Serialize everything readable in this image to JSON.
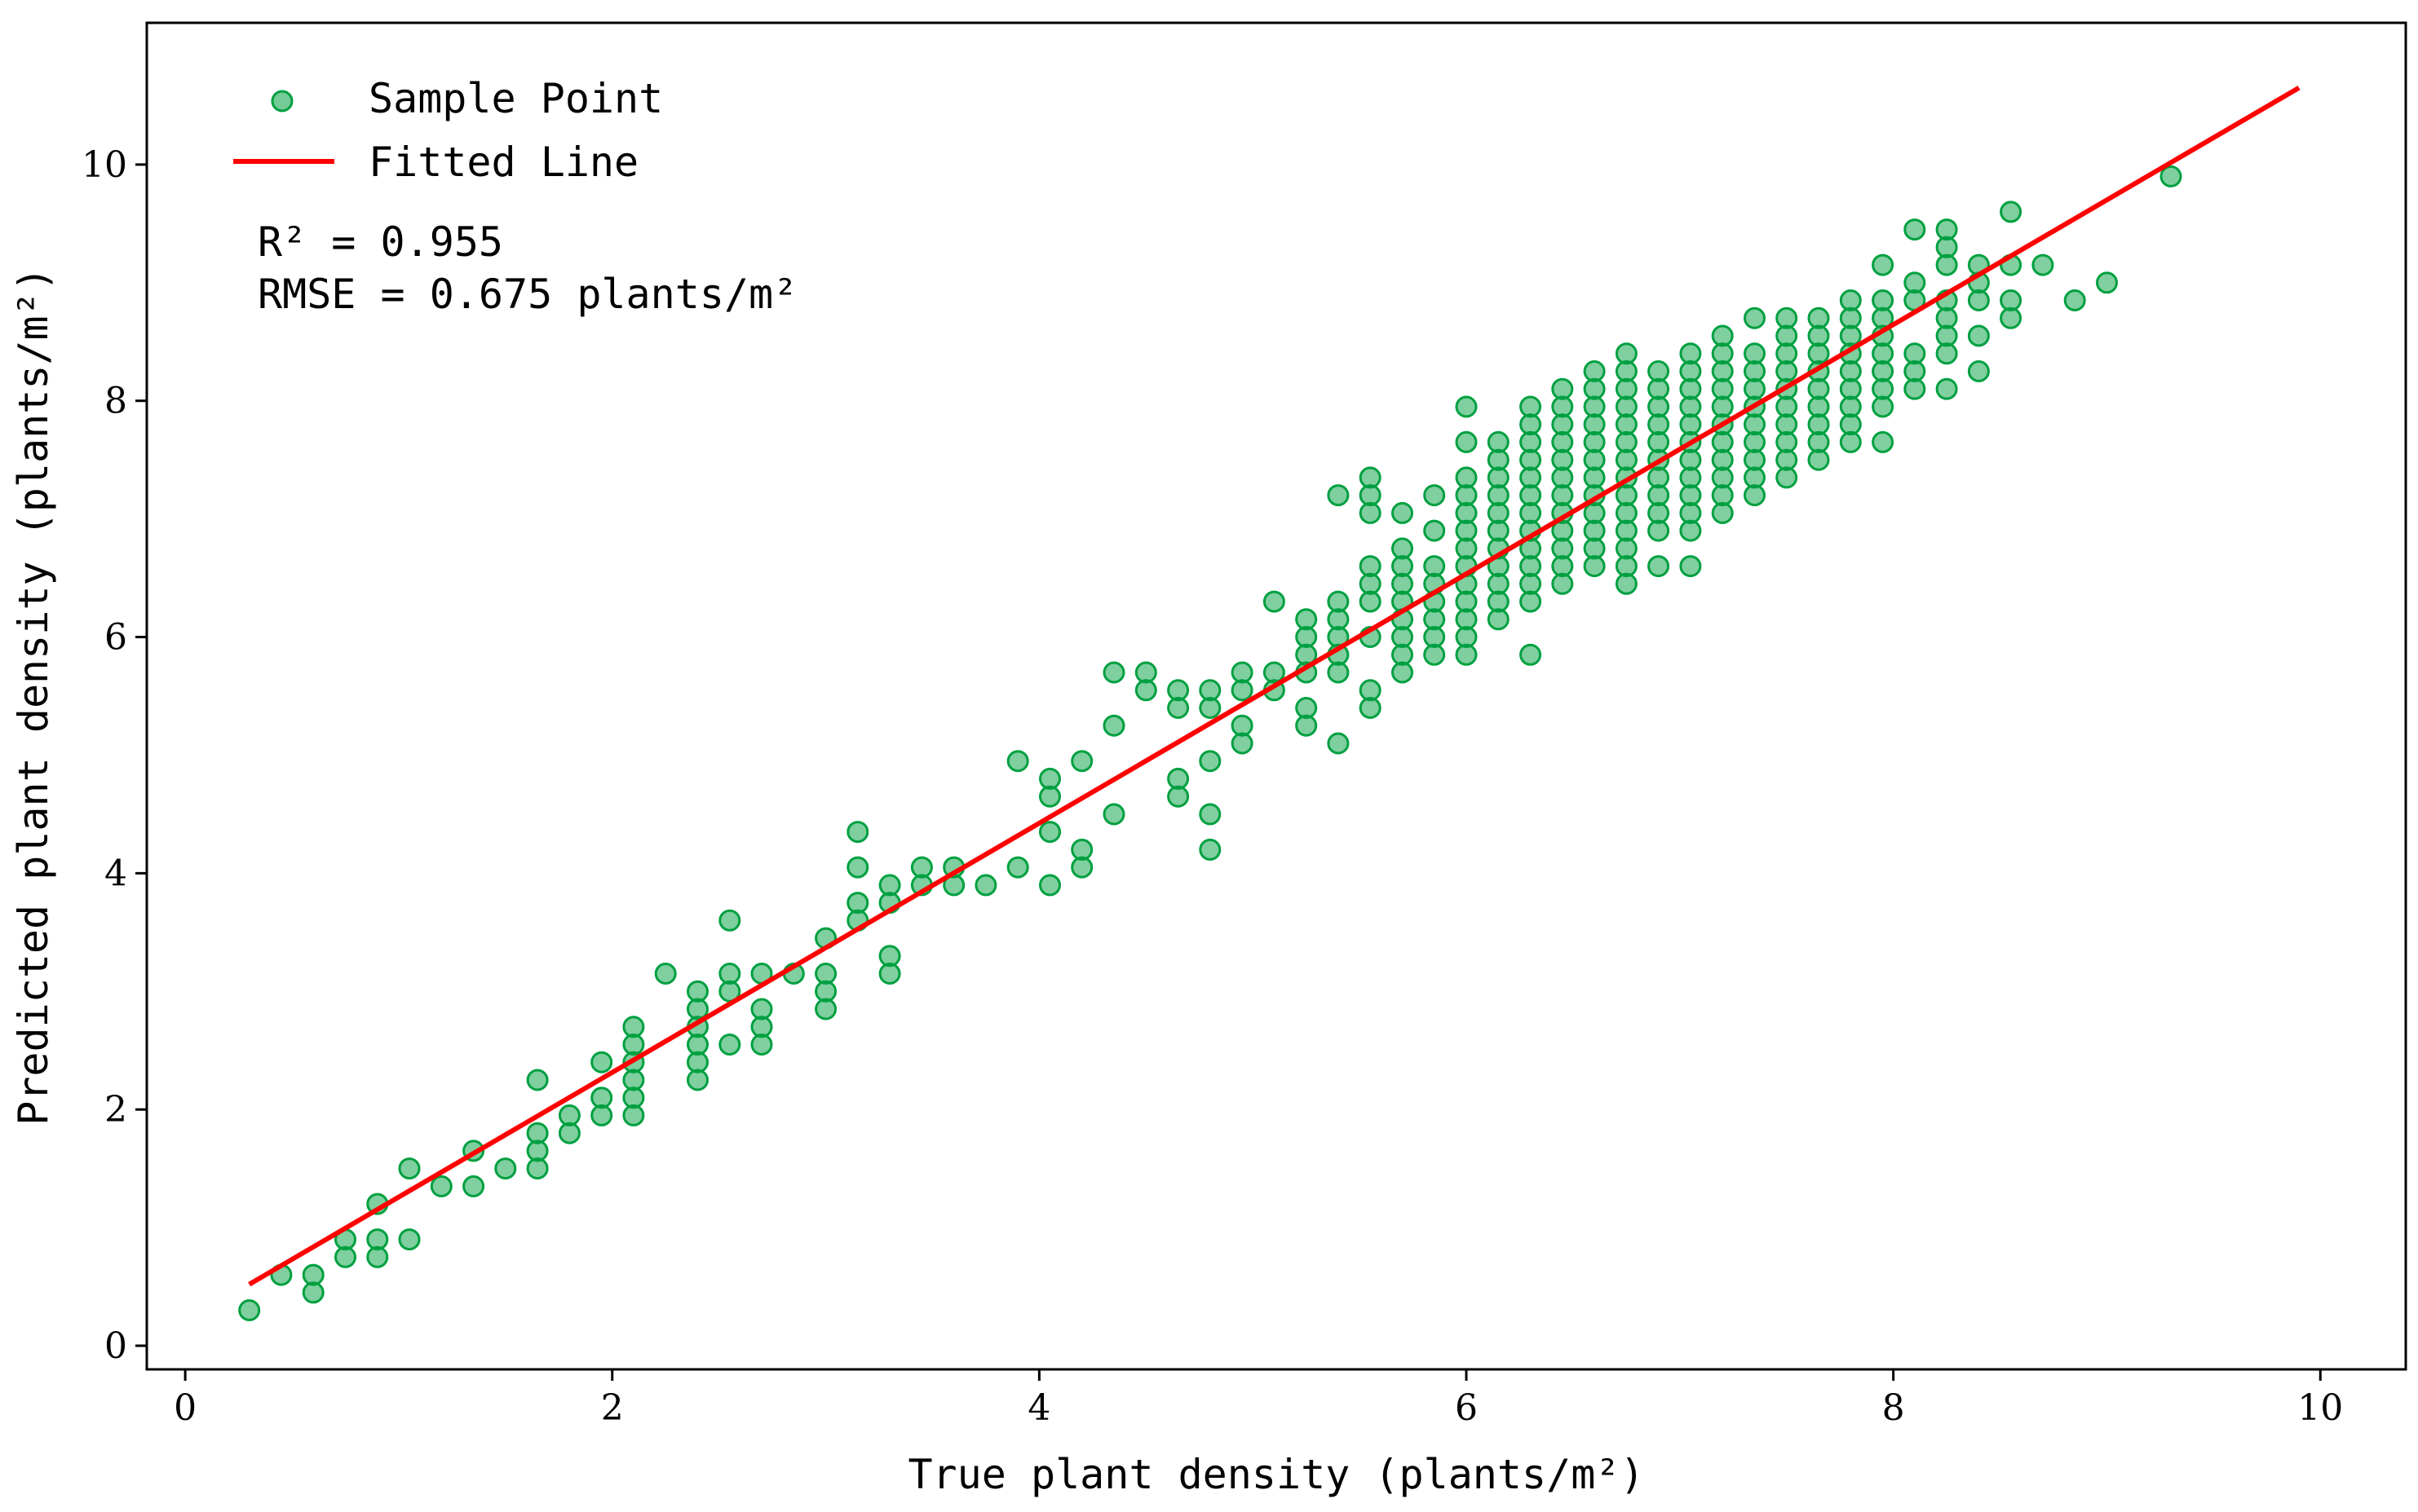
{
  "chart_data": {
    "type": "scatter",
    "xlabel": "True plant density (plants/m²)",
    "ylabel": "Predicted plant density (plants/m²)",
    "xlim": [
      -0.18,
      10.4
    ],
    "ylim": [
      -0.2,
      11.2
    ],
    "xticks": [
      0,
      2,
      4,
      6,
      8,
      10
    ],
    "yticks": [
      0,
      2,
      4,
      6,
      8,
      10
    ],
    "grid": false,
    "legend_position": "top-left",
    "legend": [
      {
        "label": "Sample Point",
        "kind": "marker",
        "color": "#00a040"
      },
      {
        "label": "Fitted Line",
        "kind": "line",
        "color": "#ff0000"
      }
    ],
    "annotations": [
      "R² = 0.955",
      "RMSE = 0.675 plants/m²"
    ],
    "series": [
      {
        "name": "Sample Point",
        "kind": "scatter",
        "color": "#00a040",
        "points": [
          [
            0.3,
            0.3
          ],
          [
            0.45,
            0.6
          ],
          [
            0.6,
            0.45
          ],
          [
            0.6,
            0.6
          ],
          [
            0.75,
            0.75
          ],
          [
            0.75,
            0.9
          ],
          [
            0.9,
            0.75
          ],
          [
            0.9,
            0.9
          ],
          [
            0.9,
            1.2
          ],
          [
            1.05,
            0.9
          ],
          [
            1.05,
            1.5
          ],
          [
            1.2,
            1.35
          ],
          [
            1.35,
            1.35
          ],
          [
            1.35,
            1.65
          ],
          [
            1.5,
            1.5
          ],
          [
            1.65,
            1.5
          ],
          [
            1.65,
            1.65
          ],
          [
            1.65,
            1.8
          ],
          [
            1.65,
            2.25
          ],
          [
            1.8,
            1.8
          ],
          [
            1.8,
            1.95
          ],
          [
            1.95,
            1.95
          ],
          [
            1.95,
            2.1
          ],
          [
            1.95,
            2.4
          ],
          [
            2.1,
            1.95
          ],
          [
            2.1,
            2.1
          ],
          [
            2.1,
            2.25
          ],
          [
            2.1,
            2.4
          ],
          [
            2.1,
            2.55
          ],
          [
            2.1,
            2.7
          ],
          [
            2.25,
            3.15
          ],
          [
            2.4,
            2.25
          ],
          [
            2.4,
            2.4
          ],
          [
            2.4,
            2.55
          ],
          [
            2.4,
            2.7
          ],
          [
            2.4,
            2.85
          ],
          [
            2.4,
            3.0
          ],
          [
            2.55,
            2.55
          ],
          [
            2.55,
            3.0
          ],
          [
            2.55,
            3.15
          ],
          [
            2.55,
            3.6
          ],
          [
            2.7,
            2.55
          ],
          [
            2.7,
            2.7
          ],
          [
            2.7,
            2.85
          ],
          [
            2.7,
            3.15
          ],
          [
            2.85,
            3.15
          ],
          [
            3.0,
            2.85
          ],
          [
            3.0,
            3.0
          ],
          [
            3.0,
            3.15
          ],
          [
            3.0,
            3.45
          ],
          [
            3.15,
            3.6
          ],
          [
            3.15,
            3.75
          ],
          [
            3.15,
            4.05
          ],
          [
            3.15,
            4.35
          ],
          [
            3.3,
            3.15
          ],
          [
            3.3,
            3.3
          ],
          [
            3.3,
            3.75
          ],
          [
            3.3,
            3.9
          ],
          [
            3.45,
            3.9
          ],
          [
            3.45,
            4.05
          ],
          [
            3.6,
            3.9
          ],
          [
            3.6,
            4.05
          ],
          [
            3.75,
            3.9
          ],
          [
            3.9,
            4.05
          ],
          [
            3.9,
            4.95
          ],
          [
            4.05,
            3.9
          ],
          [
            4.05,
            4.35
          ],
          [
            4.05,
            4.65
          ],
          [
            4.05,
            4.8
          ],
          [
            4.2,
            4.05
          ],
          [
            4.2,
            4.2
          ],
          [
            4.2,
            4.95
          ],
          [
            4.35,
            4.5
          ],
          [
            4.35,
            5.25
          ],
          [
            4.35,
            5.7
          ],
          [
            4.5,
            5.55
          ],
          [
            4.5,
            5.7
          ],
          [
            4.65,
            4.65
          ],
          [
            4.65,
            4.8
          ],
          [
            4.65,
            5.4
          ],
          [
            4.65,
            5.55
          ],
          [
            4.8,
            4.2
          ],
          [
            4.8,
            4.5
          ],
          [
            4.8,
            4.95
          ],
          [
            4.8,
            5.4
          ],
          [
            4.8,
            5.55
          ],
          [
            4.95,
            5.1
          ],
          [
            4.95,
            5.25
          ],
          [
            4.95,
            5.55
          ],
          [
            4.95,
            5.7
          ],
          [
            5.1,
            5.55
          ],
          [
            5.1,
            5.7
          ],
          [
            5.1,
            6.3
          ],
          [
            5.25,
            5.25
          ],
          [
            5.25,
            5.4
          ],
          [
            5.25,
            5.7
          ],
          [
            5.25,
            5.85
          ],
          [
            5.25,
            6.0
          ],
          [
            5.25,
            6.15
          ],
          [
            5.4,
            5.1
          ],
          [
            5.4,
            5.7
          ],
          [
            5.4,
            5.85
          ],
          [
            5.4,
            6.0
          ],
          [
            5.4,
            6.15
          ],
          [
            5.4,
            6.3
          ],
          [
            5.4,
            7.2
          ],
          [
            5.55,
            5.4
          ],
          [
            5.55,
            5.55
          ],
          [
            5.55,
            6.0
          ],
          [
            5.55,
            6.3
          ],
          [
            5.55,
            6.45
          ],
          [
            5.55,
            6.6
          ],
          [
            5.55,
            7.05
          ],
          [
            5.55,
            7.2
          ],
          [
            5.55,
            7.35
          ],
          [
            5.7,
            5.7
          ],
          [
            5.7,
            5.85
          ],
          [
            5.7,
            6.0
          ],
          [
            5.7,
            6.15
          ],
          [
            5.7,
            6.3
          ],
          [
            5.7,
            6.45
          ],
          [
            5.7,
            6.6
          ],
          [
            5.7,
            6.75
          ],
          [
            5.7,
            7.05
          ],
          [
            5.85,
            5.85
          ],
          [
            5.85,
            6.0
          ],
          [
            5.85,
            6.15
          ],
          [
            5.85,
            6.3
          ],
          [
            5.85,
            6.45
          ],
          [
            5.85,
            6.6
          ],
          [
            5.85,
            6.9
          ],
          [
            5.85,
            7.2
          ],
          [
            6.0,
            5.85
          ],
          [
            6.0,
            6.0
          ],
          [
            6.0,
            6.15
          ],
          [
            6.0,
            6.3
          ],
          [
            6.0,
            6.45
          ],
          [
            6.0,
            6.6
          ],
          [
            6.0,
            6.75
          ],
          [
            6.0,
            6.9
          ],
          [
            6.0,
            7.05
          ],
          [
            6.0,
            7.2
          ],
          [
            6.0,
            7.35
          ],
          [
            6.0,
            7.65
          ],
          [
            6.0,
            7.95
          ],
          [
            6.15,
            6.15
          ],
          [
            6.15,
            6.3
          ],
          [
            6.15,
            6.45
          ],
          [
            6.15,
            6.6
          ],
          [
            6.15,
            6.75
          ],
          [
            6.15,
            6.9
          ],
          [
            6.15,
            7.05
          ],
          [
            6.15,
            7.2
          ],
          [
            6.15,
            7.35
          ],
          [
            6.15,
            7.5
          ],
          [
            6.15,
            7.65
          ],
          [
            6.3,
            5.85
          ],
          [
            6.3,
            6.3
          ],
          [
            6.3,
            6.45
          ],
          [
            6.3,
            6.6
          ],
          [
            6.3,
            6.75
          ],
          [
            6.3,
            6.9
          ],
          [
            6.3,
            7.05
          ],
          [
            6.3,
            7.2
          ],
          [
            6.3,
            7.35
          ],
          [
            6.3,
            7.5
          ],
          [
            6.3,
            7.65
          ],
          [
            6.3,
            7.8
          ],
          [
            6.3,
            7.95
          ],
          [
            6.45,
            6.45
          ],
          [
            6.45,
            6.6
          ],
          [
            6.45,
            6.75
          ],
          [
            6.45,
            6.9
          ],
          [
            6.45,
            7.05
          ],
          [
            6.45,
            7.2
          ],
          [
            6.45,
            7.35
          ],
          [
            6.45,
            7.5
          ],
          [
            6.45,
            7.65
          ],
          [
            6.45,
            7.8
          ],
          [
            6.45,
            7.95
          ],
          [
            6.45,
            8.1
          ],
          [
            6.6,
            6.6
          ],
          [
            6.6,
            6.75
          ],
          [
            6.6,
            6.9
          ],
          [
            6.6,
            7.05
          ],
          [
            6.6,
            7.2
          ],
          [
            6.6,
            7.35
          ],
          [
            6.6,
            7.5
          ],
          [
            6.6,
            7.65
          ],
          [
            6.6,
            7.8
          ],
          [
            6.6,
            7.95
          ],
          [
            6.6,
            8.1
          ],
          [
            6.6,
            8.25
          ],
          [
            6.75,
            6.45
          ],
          [
            6.75,
            6.6
          ],
          [
            6.75,
            6.75
          ],
          [
            6.75,
            6.9
          ],
          [
            6.75,
            7.05
          ],
          [
            6.75,
            7.2
          ],
          [
            6.75,
            7.35
          ],
          [
            6.75,
            7.5
          ],
          [
            6.75,
            7.65
          ],
          [
            6.75,
            7.8
          ],
          [
            6.75,
            7.95
          ],
          [
            6.75,
            8.1
          ],
          [
            6.75,
            8.25
          ],
          [
            6.75,
            8.4
          ],
          [
            6.9,
            6.6
          ],
          [
            6.9,
            6.9
          ],
          [
            6.9,
            7.05
          ],
          [
            6.9,
            7.2
          ],
          [
            6.9,
            7.35
          ],
          [
            6.9,
            7.5
          ],
          [
            6.9,
            7.65
          ],
          [
            6.9,
            7.8
          ],
          [
            6.9,
            7.95
          ],
          [
            6.9,
            8.1
          ],
          [
            6.9,
            8.25
          ],
          [
            7.05,
            6.6
          ],
          [
            7.05,
            6.9
          ],
          [
            7.05,
            7.05
          ],
          [
            7.05,
            7.2
          ],
          [
            7.05,
            7.35
          ],
          [
            7.05,
            7.5
          ],
          [
            7.05,
            7.65
          ],
          [
            7.05,
            7.8
          ],
          [
            7.05,
            7.95
          ],
          [
            7.05,
            8.1
          ],
          [
            7.05,
            8.25
          ],
          [
            7.05,
            8.4
          ],
          [
            7.2,
            7.05
          ],
          [
            7.2,
            7.2
          ],
          [
            7.2,
            7.35
          ],
          [
            7.2,
            7.5
          ],
          [
            7.2,
            7.65
          ],
          [
            7.2,
            7.8
          ],
          [
            7.2,
            7.95
          ],
          [
            7.2,
            8.1
          ],
          [
            7.2,
            8.25
          ],
          [
            7.2,
            8.4
          ],
          [
            7.2,
            8.55
          ],
          [
            7.35,
            7.2
          ],
          [
            7.35,
            7.35
          ],
          [
            7.35,
            7.5
          ],
          [
            7.35,
            7.65
          ],
          [
            7.35,
            7.8
          ],
          [
            7.35,
            7.95
          ],
          [
            7.35,
            8.1
          ],
          [
            7.35,
            8.25
          ],
          [
            7.35,
            8.4
          ],
          [
            7.35,
            8.7
          ],
          [
            7.5,
            7.35
          ],
          [
            7.5,
            7.5
          ],
          [
            7.5,
            7.65
          ],
          [
            7.5,
            7.8
          ],
          [
            7.5,
            7.95
          ],
          [
            7.5,
            8.1
          ],
          [
            7.5,
            8.25
          ],
          [
            7.5,
            8.4
          ],
          [
            7.5,
            8.55
          ],
          [
            7.5,
            8.7
          ],
          [
            7.65,
            7.5
          ],
          [
            7.65,
            7.65
          ],
          [
            7.65,
            7.8
          ],
          [
            7.65,
            7.95
          ],
          [
            7.65,
            8.1
          ],
          [
            7.65,
            8.25
          ],
          [
            7.65,
            8.4
          ],
          [
            7.65,
            8.55
          ],
          [
            7.65,
            8.7
          ],
          [
            7.8,
            7.65
          ],
          [
            7.8,
            7.8
          ],
          [
            7.8,
            7.95
          ],
          [
            7.8,
            8.1
          ],
          [
            7.8,
            8.25
          ],
          [
            7.8,
            8.4
          ],
          [
            7.8,
            8.55
          ],
          [
            7.8,
            8.7
          ],
          [
            7.8,
            8.85
          ],
          [
            7.95,
            7.65
          ],
          [
            7.95,
            7.95
          ],
          [
            7.95,
            8.1
          ],
          [
            7.95,
            8.25
          ],
          [
            7.95,
            8.4
          ],
          [
            7.95,
            8.55
          ],
          [
            7.95,
            8.7
          ],
          [
            7.95,
            8.85
          ],
          [
            7.95,
            9.15
          ],
          [
            8.1,
            8.1
          ],
          [
            8.1,
            8.25
          ],
          [
            8.1,
            8.4
          ],
          [
            8.1,
            8.85
          ],
          [
            8.1,
            9.0
          ],
          [
            8.1,
            9.45
          ],
          [
            8.25,
            8.1
          ],
          [
            8.25,
            8.4
          ],
          [
            8.25,
            8.55
          ],
          [
            8.25,
            8.7
          ],
          [
            8.25,
            8.85
          ],
          [
            8.25,
            9.15
          ],
          [
            8.25,
            9.3
          ],
          [
            8.25,
            9.45
          ],
          [
            8.4,
            8.25
          ],
          [
            8.4,
            8.55
          ],
          [
            8.4,
            8.85
          ],
          [
            8.4,
            9.0
          ],
          [
            8.4,
            9.15
          ],
          [
            8.55,
            8.7
          ],
          [
            8.55,
            8.85
          ],
          [
            8.55,
            9.15
          ],
          [
            8.55,
            9.6
          ],
          [
            8.7,
            9.15
          ],
          [
            8.85,
            8.85
          ],
          [
            9.0,
            9.0
          ],
          [
            9.3,
            9.9
          ]
        ]
      },
      {
        "name": "Fitted Line",
        "kind": "line",
        "color": "#ff0000",
        "x": [
          0.3,
          9.9
        ],
        "y": [
          0.52,
          10.65
        ]
      }
    ]
  }
}
